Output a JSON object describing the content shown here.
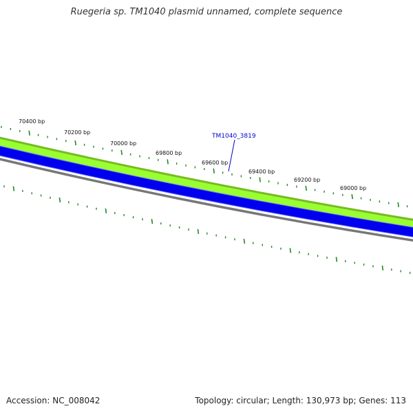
{
  "title": "Ruegeria sp. TM1040 plasmid unnamed, complete sequence",
  "footer": {
    "accession": "Accession: NC_008042",
    "summary": "Topology: circular; Length: 130,973 bp; Genes: 113"
  },
  "colors": {
    "outer_feature_band": "#99ff33",
    "outer_feature_border": "#77bb22",
    "inner_feature_band": "#0000ee",
    "inner_feature_border": "#6666ff",
    "backbone": "#777777",
    "ticks": "#228822",
    "gene_label": "#0000cc"
  },
  "ruler": {
    "labels": [
      "70400 bp",
      "70200 bp",
      "70000 bp",
      "69800 bp",
      "69600 bp",
      "69400 bp",
      "69200 bp",
      "69000 bp"
    ]
  },
  "gene_label": "TM1040_3819"
}
